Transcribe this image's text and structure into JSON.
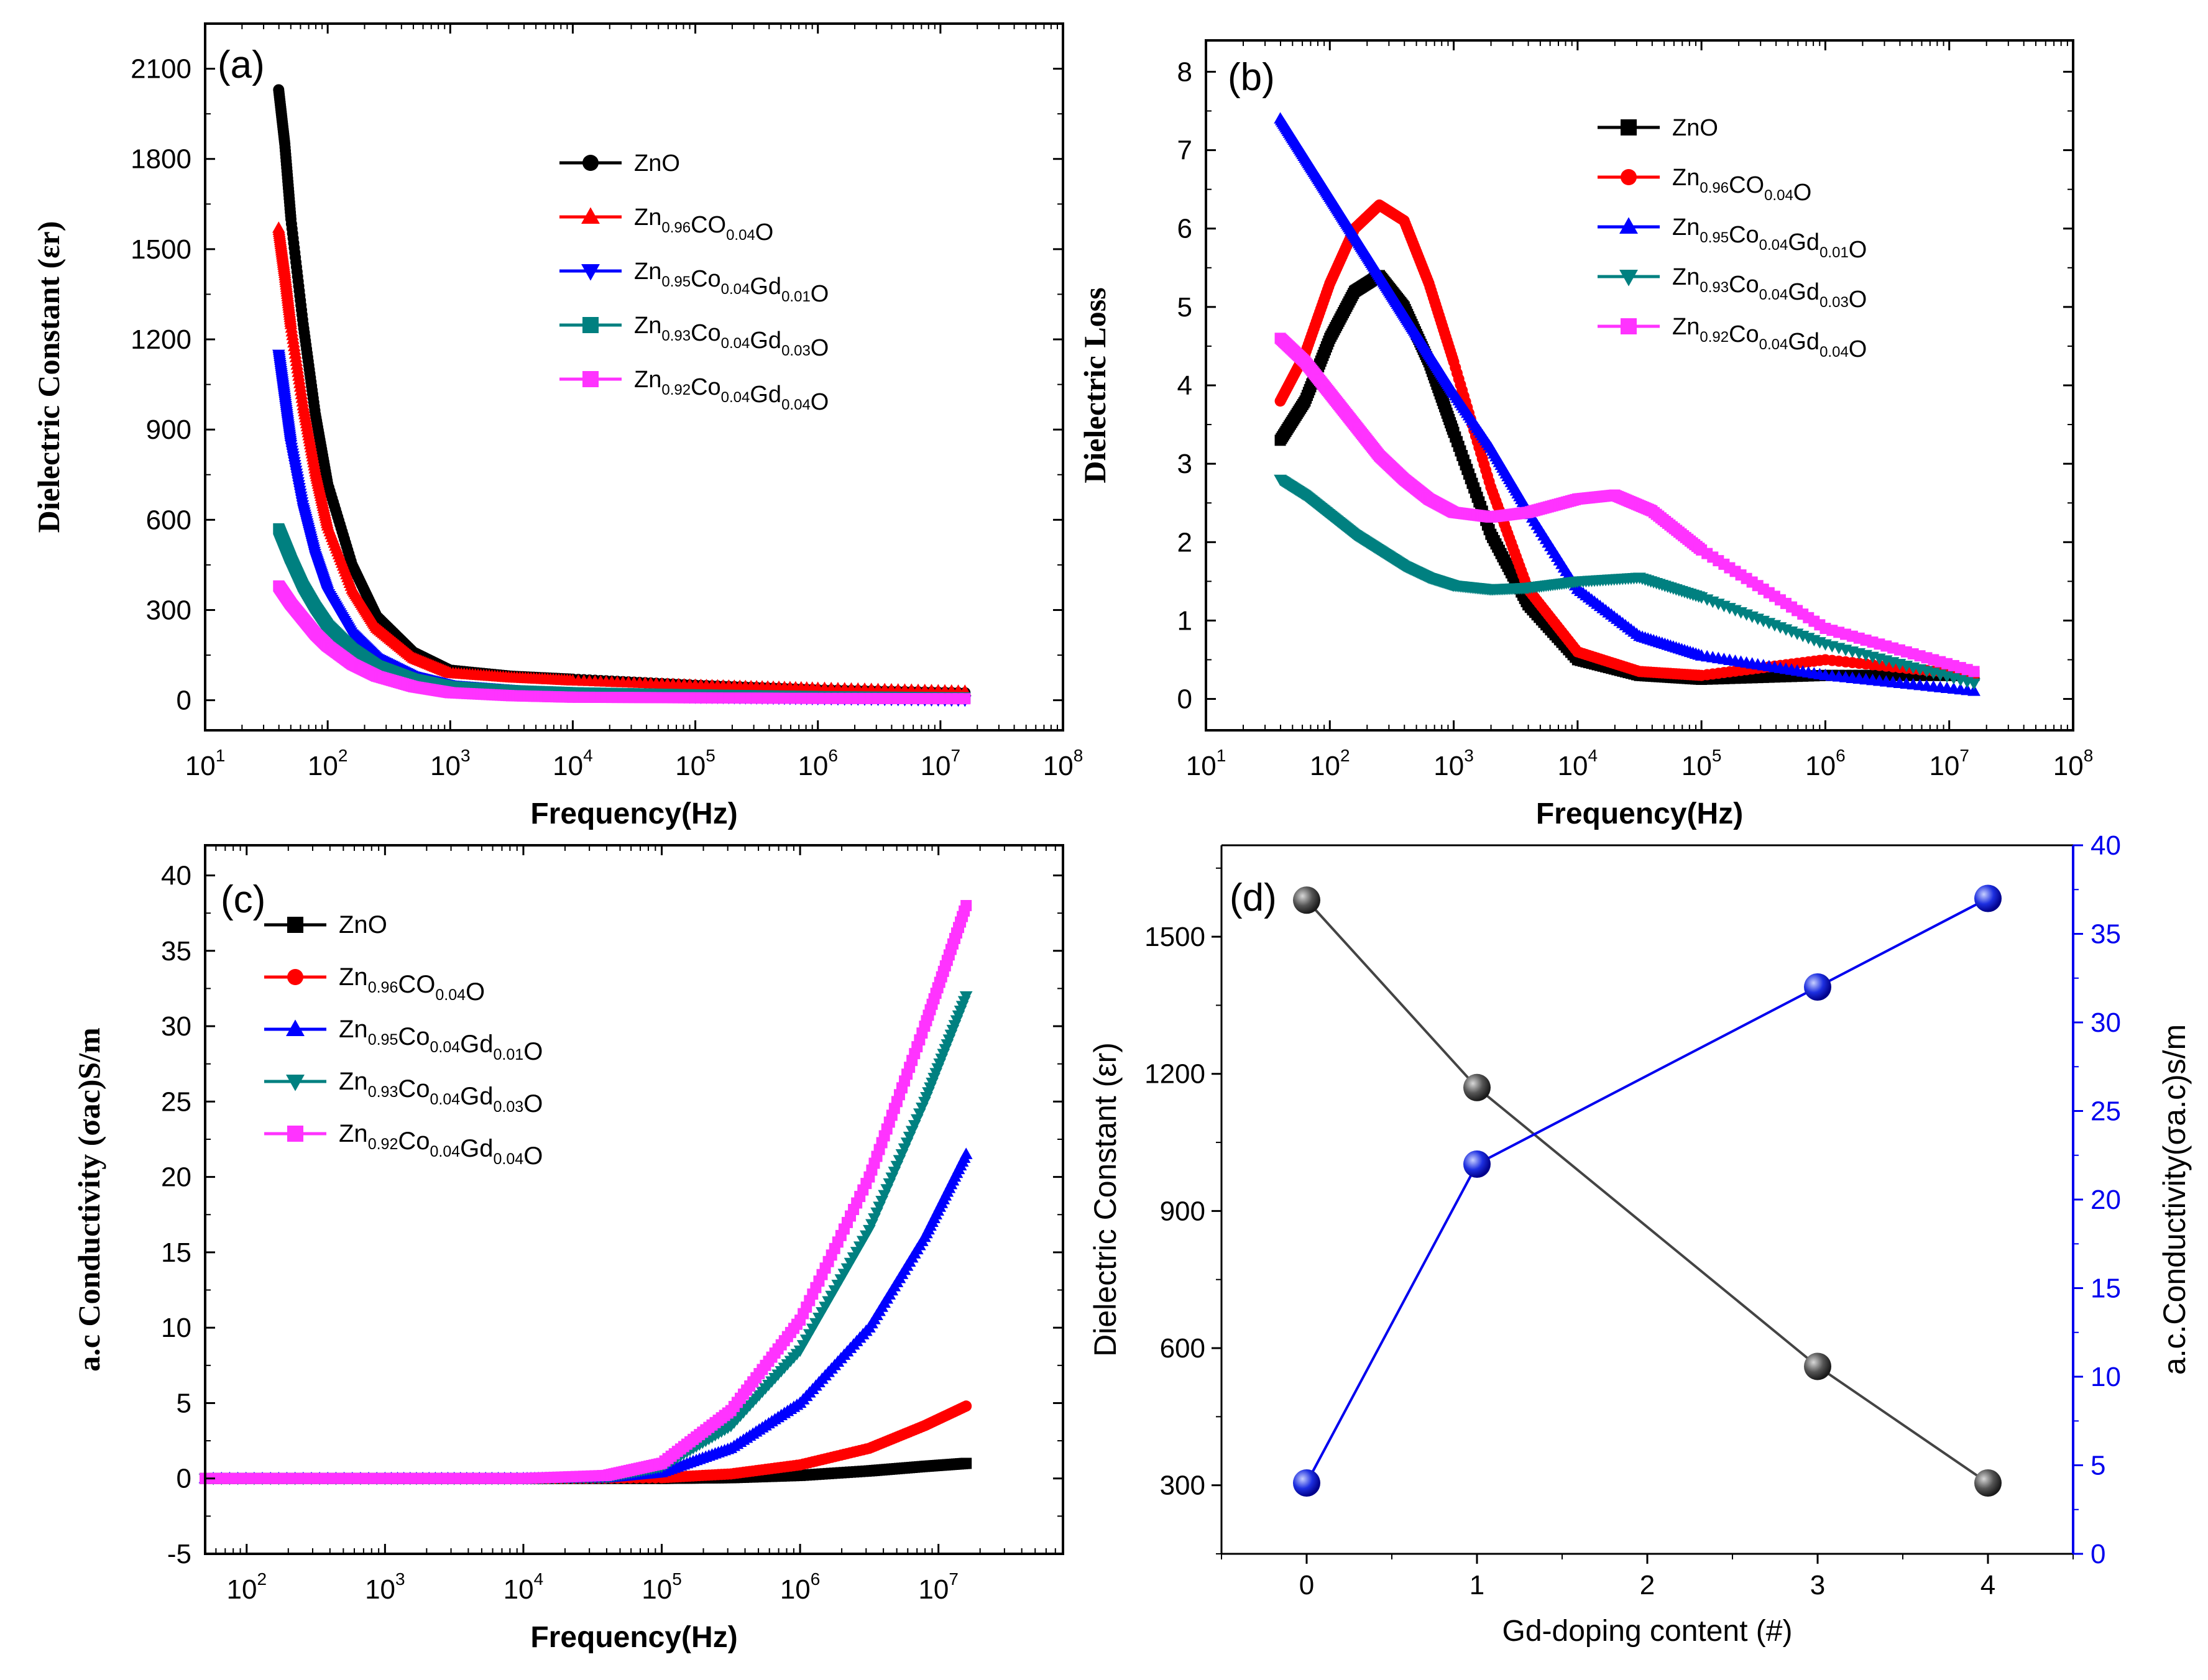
{
  "chart_data": [
    {
      "panel": "(a)",
      "type": "scatter",
      "xscale": "log",
      "xlim_log10": [
        1,
        8
      ],
      "ylim": [
        -100,
        2250
      ],
      "xticks": [
        {
          "base": "10",
          "exp": "1"
        },
        {
          "base": "10",
          "exp": "2"
        },
        {
          "base": "10",
          "exp": "3"
        },
        {
          "base": "10",
          "exp": "4"
        },
        {
          "base": "10",
          "exp": "5"
        },
        {
          "base": "10",
          "exp": "6"
        },
        {
          "base": "10",
          "exp": "7"
        },
        {
          "base": "10",
          "exp": "8"
        }
      ],
      "yticks": [
        "0",
        "300",
        "600",
        "900",
        "1200",
        "1500",
        "1800",
        "2100"
      ],
      "xlabel": "Frequency(Hz)",
      "ylabel": "Dielectric Constant (εr)",
      "legend_position": "top-right",
      "series": [
        {
          "name": "ZnO",
          "label_parts": [
            [
              "Zn",
              ""
            ],
            [
              "O",
              ""
            ]
          ],
          "color": "#000000",
          "marker": "circle",
          "x_log10": [
            1.6,
            1.65,
            1.7,
            1.8,
            1.9,
            2.0,
            2.2,
            2.4,
            2.7,
            3.0,
            3.5,
            4.0,
            5.0,
            6.0,
            7.2
          ],
          "y": [
            2030,
            1850,
            1600,
            1250,
            950,
            720,
            450,
            280,
            160,
            100,
            80,
            70,
            50,
            35,
            25
          ]
        },
        {
          "name": "Zn0.96CO0.04O",
          "label_parts": [
            [
              "Zn",
              "0.96"
            ],
            [
              "CO",
              "0.04"
            ],
            [
              "O",
              ""
            ]
          ],
          "color": "#ff0000",
          "marker": "triangle-up",
          "x_log10": [
            1.6,
            1.65,
            1.7,
            1.8,
            1.9,
            2.0,
            2.2,
            2.4,
            2.7,
            3.0,
            3.5,
            4.0,
            5.0,
            6.0,
            7.2
          ],
          "y": [
            1570,
            1420,
            1250,
            980,
            760,
            580,
            370,
            240,
            140,
            90,
            75,
            65,
            50,
            40,
            30
          ]
        },
        {
          "name": "Zn0.95Co0.04Gd0.01O",
          "label_parts": [
            [
              "Zn",
              "0.95"
            ],
            [
              "Co",
              "0.04"
            ],
            [
              "Gd",
              "0.01"
            ],
            [
              "O",
              ""
            ]
          ],
          "color": "#0000ff",
          "marker": "triangle-down",
          "x_log10": [
            1.6,
            1.65,
            1.7,
            1.8,
            1.9,
            2.0,
            2.2,
            2.4,
            2.7,
            3.0,
            3.5,
            4.0,
            5.0,
            6.0,
            7.2
          ],
          "y": [
            1150,
            1000,
            850,
            640,
            480,
            360,
            220,
            140,
            80,
            50,
            35,
            20,
            10,
            5,
            0
          ]
        },
        {
          "name": "Zn0.93Co0.04Gd0.03O",
          "label_parts": [
            [
              "Zn",
              "0.93"
            ],
            [
              "Co",
              "0.04"
            ],
            [
              "Gd",
              "0.03"
            ],
            [
              "O",
              ""
            ]
          ],
          "color": "#008080",
          "marker": "square",
          "x_log10": [
            1.6,
            1.65,
            1.7,
            1.8,
            1.9,
            2.0,
            2.2,
            2.4,
            2.7,
            3.0,
            3.5,
            4.0,
            5.0,
            6.0,
            7.2
          ],
          "y": [
            570,
            520,
            470,
            380,
            310,
            250,
            170,
            115,
            70,
            45,
            32,
            25,
            18,
            12,
            8
          ]
        },
        {
          "name": "Zn0.92Co0.04Gd0.04O",
          "label_parts": [
            [
              "Zn",
              "0.92"
            ],
            [
              "Co",
              "0.04"
            ],
            [
              "Gd",
              "0.04"
            ],
            [
              "O",
              ""
            ]
          ],
          "color": "#ff33ff",
          "marker": "square",
          "x_log10": [
            1.6,
            1.65,
            1.7,
            1.8,
            1.9,
            2.0,
            2.2,
            2.4,
            2.7,
            3.0,
            3.5,
            4.0,
            5.0,
            6.0,
            7.2
          ],
          "y": [
            380,
            350,
            320,
            270,
            220,
            180,
            120,
            80,
            45,
            25,
            15,
            10,
            8,
            6,
            5
          ]
        }
      ]
    },
    {
      "panel": "(b)",
      "type": "scatter",
      "xscale": "log",
      "xlim_log10": [
        1,
        8
      ],
      "ylim": [
        -0.4,
        8.4
      ],
      "xticks": [
        {
          "base": "10",
          "exp": "1"
        },
        {
          "base": "10",
          "exp": "2"
        },
        {
          "base": "10",
          "exp": "3"
        },
        {
          "base": "10",
          "exp": "4"
        },
        {
          "base": "10",
          "exp": "5"
        },
        {
          "base": "10",
          "exp": "6"
        },
        {
          "base": "10",
          "exp": "7"
        },
        {
          "base": "10",
          "exp": "8"
        }
      ],
      "yticks": [
        "0",
        "1",
        "2",
        "3",
        "4",
        "5",
        "6",
        "7",
        "8"
      ],
      "xlabel": "Frequency(Hz)",
      "ylabel": "Dielectric Loss",
      "legend_position": "top-right",
      "series": [
        {
          "name": "ZnO",
          "label_parts": [
            [
              "Zn",
              ""
            ],
            [
              "O",
              ""
            ]
          ],
          "color": "#000000",
          "marker": "square",
          "x_log10": [
            1.6,
            1.8,
            2.0,
            2.2,
            2.4,
            2.6,
            2.8,
            3.0,
            3.3,
            3.6,
            4.0,
            4.5,
            5.0,
            6.0,
            7.2
          ],
          "y": [
            3.3,
            3.8,
            4.6,
            5.2,
            5.4,
            5.0,
            4.3,
            3.4,
            2.1,
            1.2,
            0.5,
            0.3,
            0.25,
            0.3,
            0.3
          ]
        },
        {
          "name": "Zn0.96CO0.04O",
          "label_parts": [
            [
              "Zn",
              "0.96"
            ],
            [
              "CO",
              "0.04"
            ],
            [
              "O",
              ""
            ]
          ],
          "color": "#ff0000",
          "marker": "circle",
          "x_log10": [
            1.6,
            1.8,
            2.0,
            2.2,
            2.4,
            2.6,
            2.8,
            3.0,
            3.3,
            3.6,
            4.0,
            4.5,
            5.0,
            6.0,
            7.2
          ],
          "y": [
            3.8,
            4.4,
            5.3,
            6.0,
            6.3,
            6.1,
            5.3,
            4.3,
            2.7,
            1.4,
            0.6,
            0.35,
            0.3,
            0.5,
            0.3
          ]
        },
        {
          "name": "Zn0.95Co0.04Gd0.01O",
          "label_parts": [
            [
              "Zn",
              "0.95"
            ],
            [
              "Co",
              "0.04"
            ],
            [
              "Gd",
              "0.01"
            ],
            [
              "O",
              ""
            ]
          ],
          "color": "#0000ff",
          "marker": "triangle-up",
          "x_log10": [
            1.6,
            1.8,
            2.0,
            2.2,
            2.4,
            2.6,
            2.8,
            3.0,
            3.3,
            3.6,
            4.0,
            4.5,
            5.0,
            6.0,
            7.2
          ],
          "y": [
            7.4,
            6.9,
            6.4,
            5.9,
            5.4,
            4.9,
            4.4,
            3.9,
            3.2,
            2.4,
            1.4,
            0.8,
            0.55,
            0.3,
            0.1
          ]
        },
        {
          "name": "Zn0.93Co0.04Gd0.03O",
          "label_parts": [
            [
              "Zn",
              "0.93"
            ],
            [
              "Co",
              "0.04"
            ],
            [
              "Gd",
              "0.03"
            ],
            [
              "O",
              ""
            ]
          ],
          "color": "#008080",
          "marker": "triangle-down",
          "x_log10": [
            1.6,
            1.8,
            2.0,
            2.2,
            2.4,
            2.6,
            2.8,
            3.0,
            3.3,
            3.6,
            4.0,
            4.5,
            5.0,
            6.0,
            7.2
          ],
          "y": [
            2.8,
            2.6,
            2.35,
            2.1,
            1.9,
            1.7,
            1.55,
            1.45,
            1.4,
            1.42,
            1.5,
            1.55,
            1.3,
            0.7,
            0.2
          ]
        },
        {
          "name": "Zn0.92Co0.04Gd0.04O",
          "label_parts": [
            [
              "Zn",
              "0.92"
            ],
            [
              "Co",
              "0.04"
            ],
            [
              "Gd",
              "0.04"
            ],
            [
              "O",
              ""
            ]
          ],
          "color": "#ff33ff",
          "marker": "square",
          "x_log10": [
            1.6,
            1.8,
            2.0,
            2.2,
            2.4,
            2.6,
            2.8,
            3.0,
            3.3,
            3.6,
            4.0,
            4.3,
            4.6,
            5.0,
            6.0,
            7.2
          ],
          "y": [
            4.6,
            4.3,
            3.9,
            3.5,
            3.1,
            2.8,
            2.55,
            2.38,
            2.32,
            2.38,
            2.55,
            2.6,
            2.4,
            1.9,
            0.9,
            0.35
          ]
        }
      ]
    },
    {
      "panel": "(c)",
      "type": "scatter",
      "xscale": "log",
      "xlim_log10": [
        1.7,
        7.9
      ],
      "ylim": [
        -5,
        42
      ],
      "xticks": [
        {
          "base": "10",
          "exp": "2"
        },
        {
          "base": "10",
          "exp": "3"
        },
        {
          "base": "10",
          "exp": "4"
        },
        {
          "base": "10",
          "exp": "5"
        },
        {
          "base": "10",
          "exp": "6"
        },
        {
          "base": "10",
          "exp": "7"
        }
      ],
      "yticks": [
        "-5",
        "0",
        "5",
        "10",
        "15",
        "20",
        "25",
        "30",
        "35",
        "40"
      ],
      "xlabel": "Frequency(Hz)",
      "ylabel": "a.c Conductivity (σac)S/m",
      "legend_position": "top-left",
      "series": [
        {
          "name": "ZnO",
          "label_parts": [
            [
              "Zn",
              ""
            ],
            [
              "O",
              ""
            ]
          ],
          "color": "#000000",
          "marker": "square",
          "x_log10": [
            1.7,
            3.0,
            4.0,
            5.0,
            5.5,
            6.0,
            6.5,
            6.9,
            7.2
          ],
          "y": [
            0,
            0,
            0,
            0,
            0.05,
            0.2,
            0.5,
            0.8,
            1.0
          ]
        },
        {
          "name": "Zn0.96CO0.04O",
          "label_parts": [
            [
              "Zn",
              "0.96"
            ],
            [
              "CO",
              "0.04"
            ],
            [
              "O",
              ""
            ]
          ],
          "color": "#ff0000",
          "marker": "circle",
          "x_log10": [
            1.7,
            3.0,
            4.0,
            5.0,
            5.5,
            6.0,
            6.5,
            6.9,
            7.2
          ],
          "y": [
            0,
            0,
            0,
            0.05,
            0.3,
            0.9,
            2.0,
            3.5,
            4.8
          ]
        },
        {
          "name": "Zn0.95Co0.04Gd0.01O",
          "label_parts": [
            [
              "Zn",
              "0.95"
            ],
            [
              "Co",
              "0.04"
            ],
            [
              "Gd",
              "0.01"
            ],
            [
              "O",
              ""
            ]
          ],
          "color": "#0000ff",
          "marker": "triangle-up",
          "x_log10": [
            1.7,
            3.0,
            4.0,
            4.6,
            5.0,
            5.5,
            6.0,
            6.5,
            6.9,
            7.2
          ],
          "y": [
            0,
            0,
            0,
            0.05,
            0.4,
            2.0,
            5.0,
            10.0,
            16.0,
            21.5
          ]
        },
        {
          "name": "Zn0.93Co0.04Gd0.03O",
          "label_parts": [
            [
              "Zn",
              "0.93"
            ],
            [
              "Co",
              "0.04"
            ],
            [
              "Gd",
              "0.03"
            ],
            [
              "O",
              ""
            ]
          ],
          "color": "#008080",
          "marker": "triangle-down",
          "x_log10": [
            1.7,
            3.0,
            4.0,
            4.6,
            5.0,
            5.5,
            6.0,
            6.5,
            6.9,
            7.2
          ],
          "y": [
            0,
            0,
            0,
            0.1,
            0.8,
            3.5,
            8.5,
            16.5,
            25.0,
            32.0
          ]
        },
        {
          "name": "Zn0.92Co0.04Gd0.04O",
          "label_parts": [
            [
              "Zn",
              "0.92"
            ],
            [
              "Co",
              "0.04"
            ],
            [
              "Gd",
              "0.04"
            ],
            [
              "O",
              ""
            ]
          ],
          "color": "#ff33ff",
          "marker": "square",
          "x_log10": [
            1.7,
            3.0,
            4.0,
            4.6,
            5.0,
            5.5,
            6.0,
            6.5,
            6.9,
            7.2
          ],
          "y": [
            0,
            0,
            0,
            0.2,
            1.0,
            4.5,
            10.5,
            20.0,
            30.0,
            38.0
          ]
        }
      ]
    },
    {
      "panel": "(d)",
      "type": "line",
      "x": [
        0,
        1,
        3,
        4
      ],
      "xlim": [
        -0.5,
        4.5
      ],
      "xticks": [
        "0",
        "1",
        "2",
        "3",
        "4"
      ],
      "xlabel": "Gd-doping content (#)",
      "ylabel_left": "Dielectric Constant (εr)",
      "ylabel_right": "a.c.Conductivity(σa.c)s/m",
      "ylim_left": [
        150,
        1700
      ],
      "yticks_left": [
        "300",
        "600",
        "900",
        "1200",
        "1500"
      ],
      "ylim_right": [
        0,
        40
      ],
      "yticks_right": [
        "0",
        "5",
        "10",
        "15",
        "20",
        "25",
        "30",
        "35",
        "40"
      ],
      "series": [
        {
          "name": "Dielectric Constant",
          "axis": "left",
          "color": "#444444",
          "values": [
            1580,
            1170,
            560,
            305
          ]
        },
        {
          "name": "a.c.Conductivity",
          "axis": "right",
          "color": "#0000ee",
          "values": [
            4,
            22,
            32,
            37
          ]
        }
      ]
    }
  ]
}
